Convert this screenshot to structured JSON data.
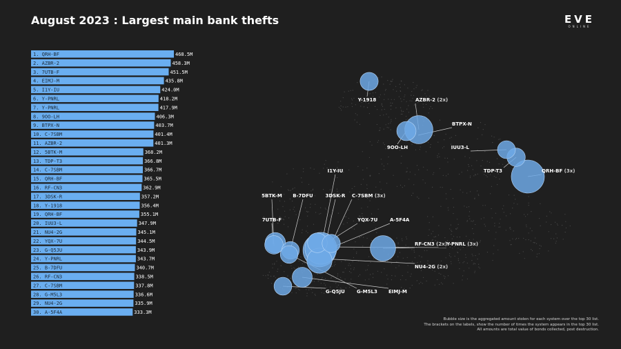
{
  "title": "August 2023 : Largest main bank thefts",
  "logo": {
    "main": "EVE",
    "sub": "ONLINE"
  },
  "colors": {
    "background": "#1f1f1f",
    "bar": "#6aaef0",
    "bubble": "#6fa9e6",
    "bubble_stroke": "#b7d6f7"
  },
  "notes": [
    "Bubble size is the aggregated amount stolen for each system over the top 30 list.",
    "The brackets on the labels, show the number of times the system appears in the top 30 list.",
    "All amounts are total value of bonds collected, post destruction."
  ],
  "chart_data": [
    {
      "type": "bar",
      "orientation": "horizontal",
      "title": "August 2023 : Largest main bank thefts",
      "categories": [
        "1. QRH-BF",
        "2. AZBR-2",
        "3. 7UTB-F",
        "4. EIMJ-M",
        "5. I1Y-IU",
        "6. Y-PNRL",
        "7. Y-PNRL",
        "8. 9OO-LH",
        "9. BTPX-N",
        "10. C-7SBM",
        "11. AZBR-2",
        "12. 5BTK-M",
        "13. TDP-T3",
        "14. C-7SBM",
        "15. QRH-BF",
        "16. RF-CN3",
        "17. 3DSK-R",
        "18. Y-1918",
        "19. QRH-BF",
        "20. IUU3-L",
        "21. NU4-2G",
        "22. YQX-7U",
        "23. G-Q5JU",
        "24. Y-PNRL",
        "25. B-7DFU",
        "26. RF-CN3",
        "27. C-7SBM",
        "28. G-M5L3",
        "29. NU4-2G",
        "30. A-5F4A"
      ],
      "values": [
        468.5,
        458.3,
        451.5,
        435.8,
        424.0,
        418.2,
        417.9,
        406.3,
        403.7,
        401.4,
        401.3,
        368.2,
        366.8,
        366.7,
        365.5,
        362.9,
        357.2,
        356.4,
        355.1,
        347.9,
        345.1,
        344.5,
        343.9,
        343.7,
        340.7,
        338.5,
        337.8,
        336.6,
        335.9,
        333.3
      ],
      "value_labels": [
        "468.5M",
        "458.3M",
        "451.5M",
        "435.8M",
        "424.0M",
        "418.2M",
        "417.9M",
        "406.3M",
        "403.7M",
        "401.4M",
        "401.3M",
        "368.2M",
        "366.8M",
        "366.7M",
        "365.5M",
        "362.9M",
        "357.2M",
        "356.4M",
        "355.1M",
        "347.9M",
        "345.1M",
        "344.5M",
        "343.9M",
        "343.7M",
        "340.7M",
        "338.5M",
        "337.8M",
        "336.6M",
        "335.9M",
        "333.3M"
      ]
    },
    {
      "type": "scatter",
      "subtype": "bubble-map",
      "systems": [
        {
          "name": "Y-1918",
          "count": "",
          "total": 356.4
        },
        {
          "name": "AZBR-2",
          "count": "(2x)",
          "total": 859.6
        },
        {
          "name": "BTPX-N",
          "count": "",
          "total": 403.7
        },
        {
          "name": "9OO-LH",
          "count": "",
          "total": 406.3
        },
        {
          "name": "IUU3-L",
          "count": "",
          "total": 347.9
        },
        {
          "name": "TDP-T3",
          "count": "",
          "total": 366.8
        },
        {
          "name": "QRH-BF",
          "count": "(3x)",
          "total": 1189.1
        },
        {
          "name": "I1Y-IU",
          "count": "",
          "total": 424.0
        },
        {
          "name": "5BTK-M",
          "count": "",
          "total": 368.2
        },
        {
          "name": "B-7DFU",
          "count": "",
          "total": 340.7
        },
        {
          "name": "3DSK-R",
          "count": "",
          "total": 357.2
        },
        {
          "name": "C-7SBM",
          "count": "(3x)",
          "total": 1105.9
        },
        {
          "name": "7UTB-F",
          "count": "",
          "total": 451.5
        },
        {
          "name": "YQX-7U",
          "count": "",
          "total": 344.5
        },
        {
          "name": "A-5F4A",
          "count": "",
          "total": 333.3
        },
        {
          "name": "RF-CN3",
          "count": "(2x)",
          "total": 701.4
        },
        {
          "name": "Y-PNRL",
          "count": "(3x)",
          "total": 1179.8
        },
        {
          "name": "NU4-2G",
          "count": "(2x)",
          "total": 681.0
        },
        {
          "name": "G-Q5JU",
          "count": "",
          "total": 343.9
        },
        {
          "name": "G-M5L3",
          "count": "",
          "total": 336.6
        },
        {
          "name": "EIMJ-M",
          "count": "",
          "total": 435.8
        }
      ]
    }
  ]
}
